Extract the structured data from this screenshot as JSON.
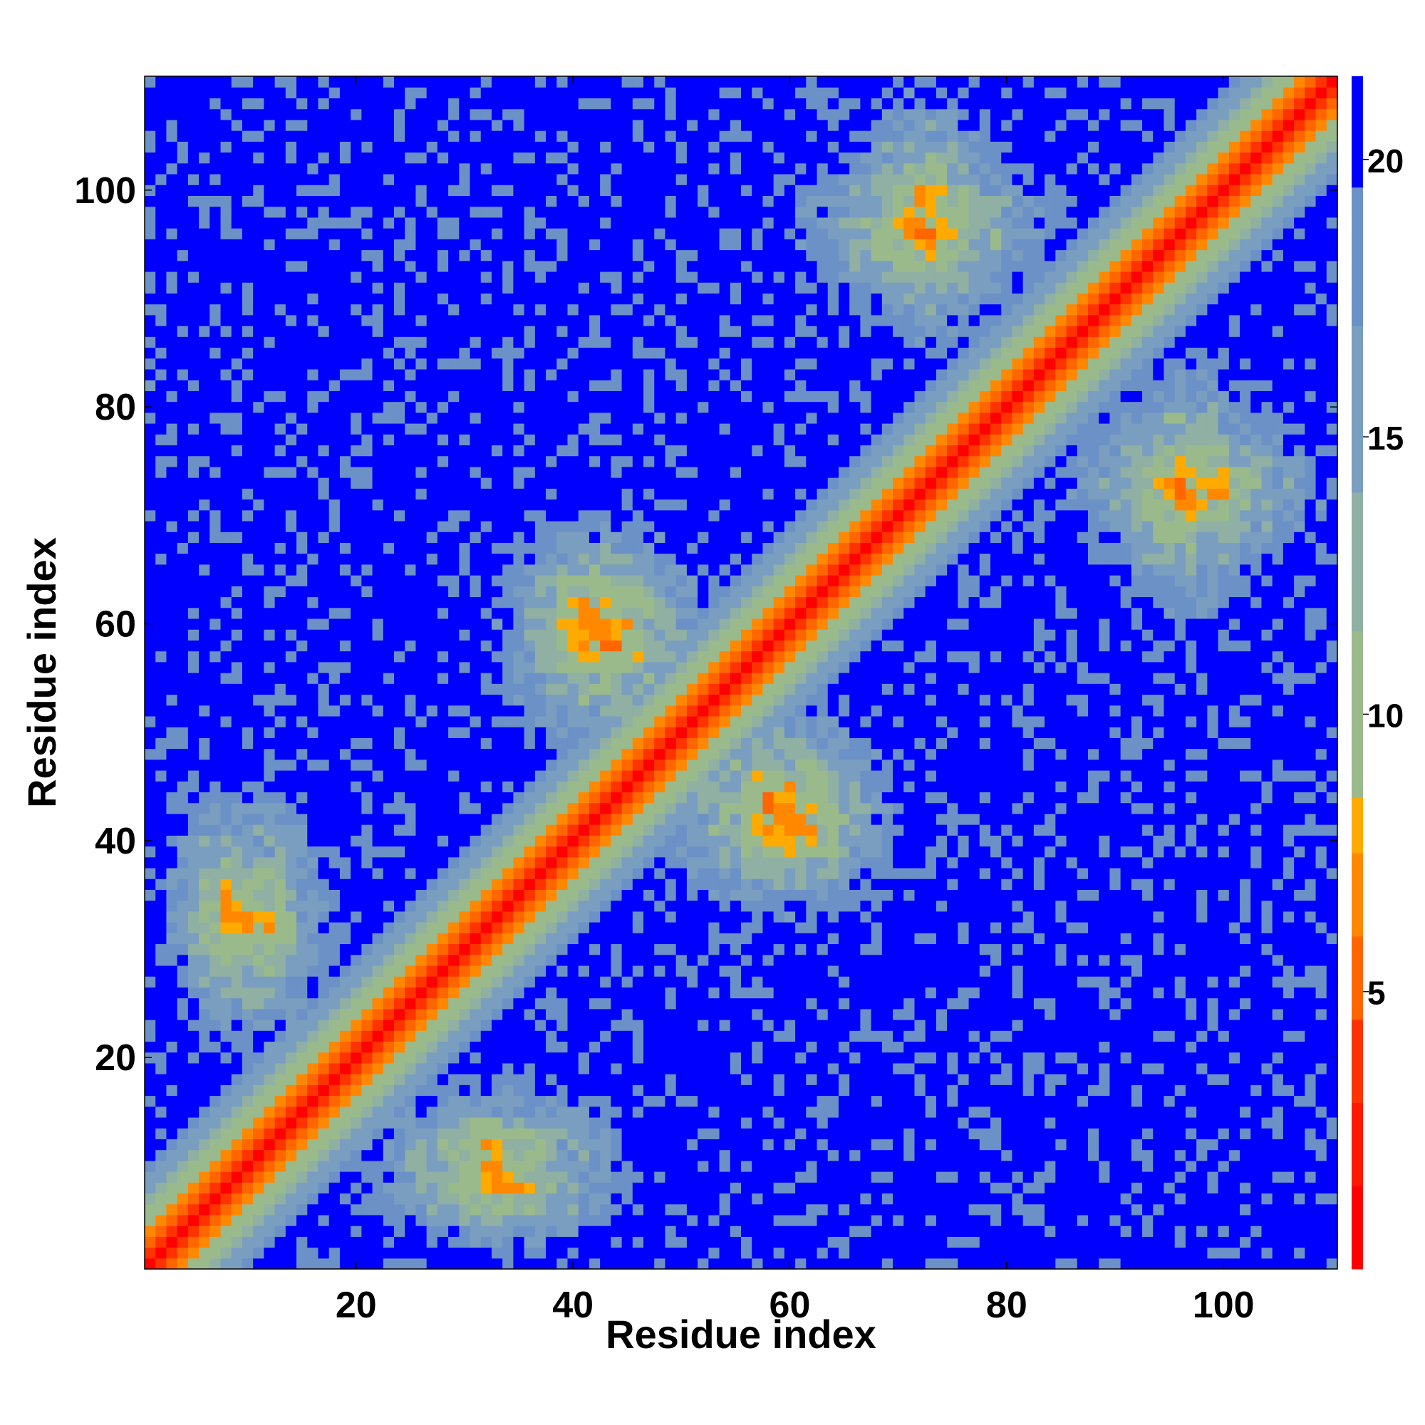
{
  "chart_data": {
    "type": "heatmap",
    "title": "",
    "xlabel": "Residue index",
    "ylabel": "Residue index",
    "n_residues": 110,
    "xlim": [
      0.5,
      110.5
    ],
    "ylim": [
      0.5,
      110.5
    ],
    "x_ticks": [
      20,
      40,
      60,
      80,
      100
    ],
    "y_ticks": [
      20,
      40,
      60,
      80,
      100
    ],
    "colorbar": {
      "ticks": [
        5,
        10,
        15,
        20
      ],
      "range": [
        0,
        21.5
      ],
      "levels": [
        {
          "upper": 1.5,
          "color": "#ff0000"
        },
        {
          "upper": 3.0,
          "color": "#ff1800"
        },
        {
          "upper": 4.5,
          "color": "#ff3300"
        },
        {
          "upper": 6.0,
          "color": "#ff6600"
        },
        {
          "upper": 7.5,
          "color": "#ff8800"
        },
        {
          "upper": 8.5,
          "color": "#ffaa00"
        },
        {
          "upper": 11.5,
          "color": "#9aba8c"
        },
        {
          "upper": 14.0,
          "color": "#8fb0a3"
        },
        {
          "upper": 17.0,
          "color": "#7a9ec0"
        },
        {
          "upper": 19.5,
          "color": "#6b91c7"
        },
        {
          "upper": 21.5,
          "color": "#0000ff"
        }
      ]
    },
    "diagonal_band": {
      "description_values": [
        {
          "offset": 0,
          "distance": 0
        },
        {
          "offset": 1,
          "distance": 3.8
        },
        {
          "offset": 2,
          "distance": 5.8
        },
        {
          "offset": 3,
          "distance": 7.5
        },
        {
          "offset": 4,
          "distance": 9.5
        },
        {
          "offset": 5,
          "distance": 11.0
        },
        {
          "offset": 6,
          "distance": 12.8
        },
        {
          "offset": 7,
          "distance": 14.5
        },
        {
          "offset": 8,
          "distance": 16.5
        },
        {
          "offset": 9,
          "distance": 18.5
        }
      ]
    },
    "off_diagonal_contacts": [
      {
        "i_range": [
          2,
          14
        ],
        "j_range": [
          22,
          45
        ],
        "min_distance": 7.5
      },
      {
        "i_range": [
          33,
          53
        ],
        "j_range": [
          48,
          70
        ],
        "min_distance": 6.5
      },
      {
        "i_range": [
          65,
          80
        ],
        "j_range": [
          85,
          110
        ],
        "min_distance": 7.0
      },
      {
        "i_range": [
          88,
          105
        ],
        "j_range": [
          60,
          85
        ],
        "min_distance": 7.0
      },
      {
        "i_range": [
          50,
          70
        ],
        "j_range": [
          33,
          50
        ],
        "min_distance": 7.0
      },
      {
        "i_range": [
          20,
          45
        ],
        "j_range": [
          3,
          18
        ],
        "min_distance": 7.0
      }
    ],
    "grid": false,
    "legend": "colorbar-right"
  },
  "axes": {
    "xlabel": "Residue index",
    "ylabel": "Residue index",
    "x_tick_labels": [
      "20",
      "40",
      "60",
      "80",
      "100"
    ],
    "y_tick_labels": [
      "20",
      "40",
      "60",
      "80",
      "100"
    ],
    "cbar_tick_labels": [
      "5",
      "10",
      "15",
      "20"
    ]
  }
}
